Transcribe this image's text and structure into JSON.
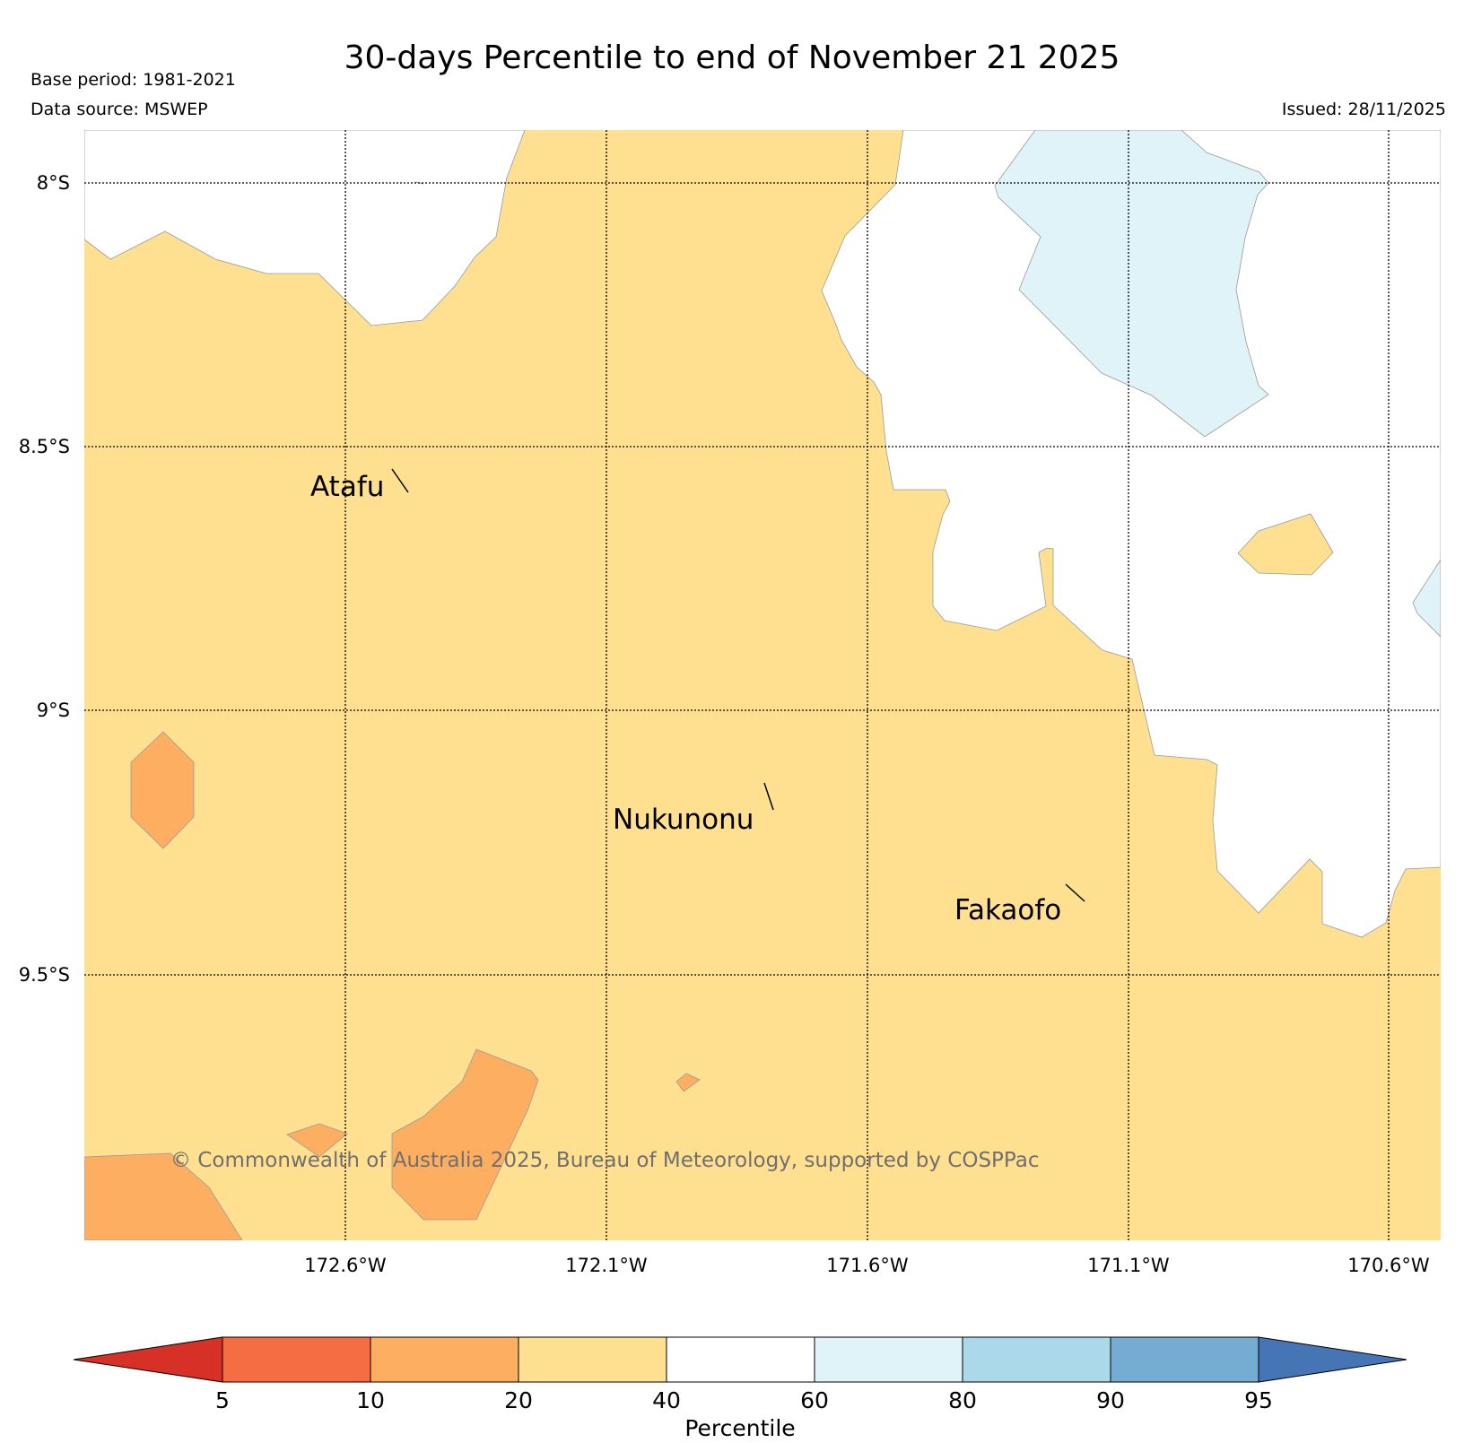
{
  "header": {
    "title": "30-days Percentile to end of November 21 2025",
    "base_period": "Base period: 1981-2021",
    "data_source": "Data source: MSWEP",
    "issued": "Issued: 28/11/2025"
  },
  "map": {
    "lat_labels": [
      "8°S",
      "8.5°S",
      "9°S",
      "9.5°S"
    ],
    "lon_labels": [
      "172.6°W",
      "172.1°W",
      "171.6°W",
      "171.1°W",
      "170.6°W"
    ],
    "places": [
      "Atafu",
      "Nukunonu",
      "Fakaofo"
    ],
    "copyright": "© Commonwealth of Australia 2025, Bureau of Meteorology, supported by COSPPac",
    "colors": {
      "below_5": "#d73027",
      "p5_10": "#f46d43",
      "p10_20": "#fdae61",
      "p20_40": "#fee090",
      "p40_60": "#ffffff",
      "p60_80": "#e0f3f8",
      "p80_90": "#abd9e9",
      "p90_95": "#74add1",
      "above_95": "#4575b4"
    }
  },
  "colorbar": {
    "label": "Percentile",
    "ticks": [
      "5",
      "10",
      "20",
      "40",
      "60",
      "80",
      "90",
      "95"
    ]
  }
}
